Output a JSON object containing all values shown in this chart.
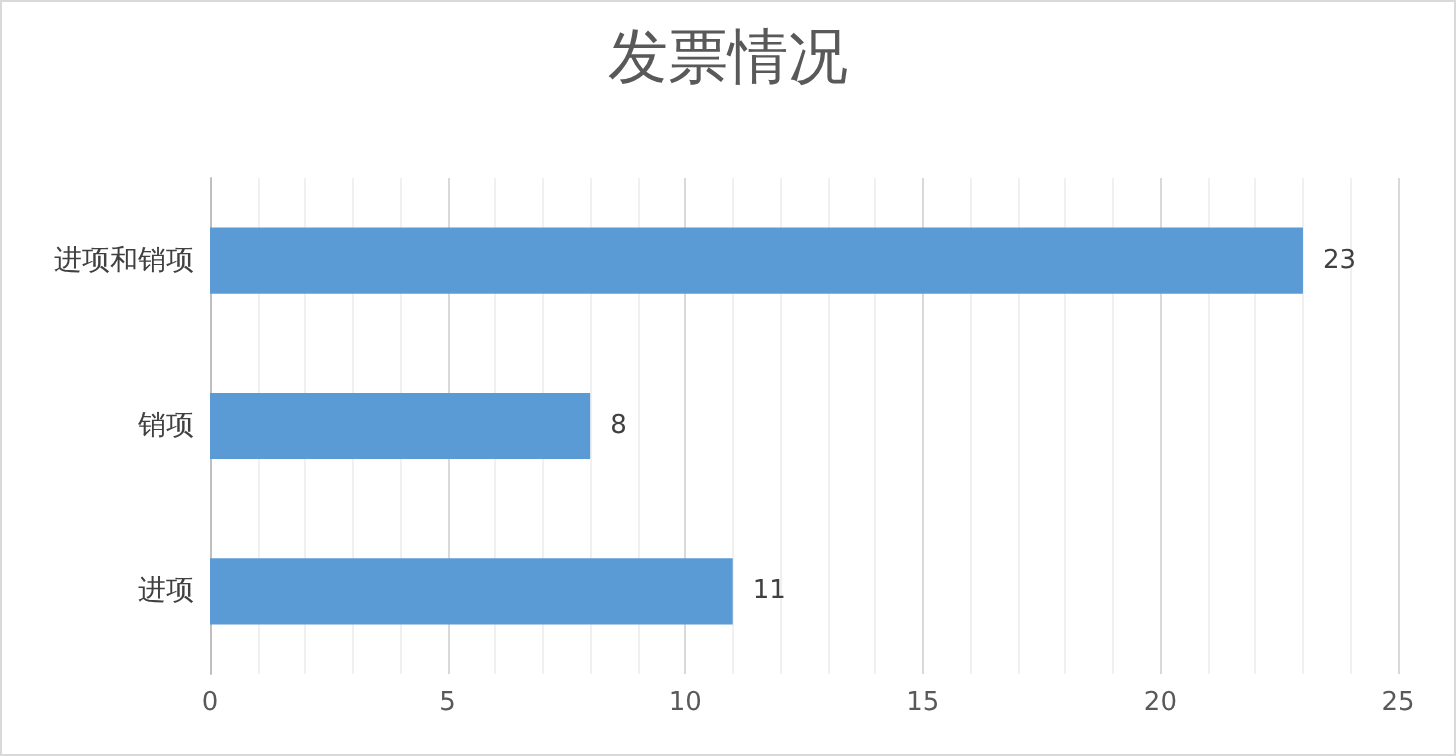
{
  "chart_data": {
    "type": "bar",
    "orientation": "horizontal",
    "title": "发票情况",
    "categories": [
      "进项和销项",
      "销项",
      "进项"
    ],
    "values": [
      23,
      8,
      11
    ],
    "color": "#5b9bd5",
    "xlim": [
      0,
      25
    ],
    "xticks": [
      0,
      5,
      10,
      15,
      20,
      25
    ],
    "grid": "x",
    "data_labels": true
  }
}
